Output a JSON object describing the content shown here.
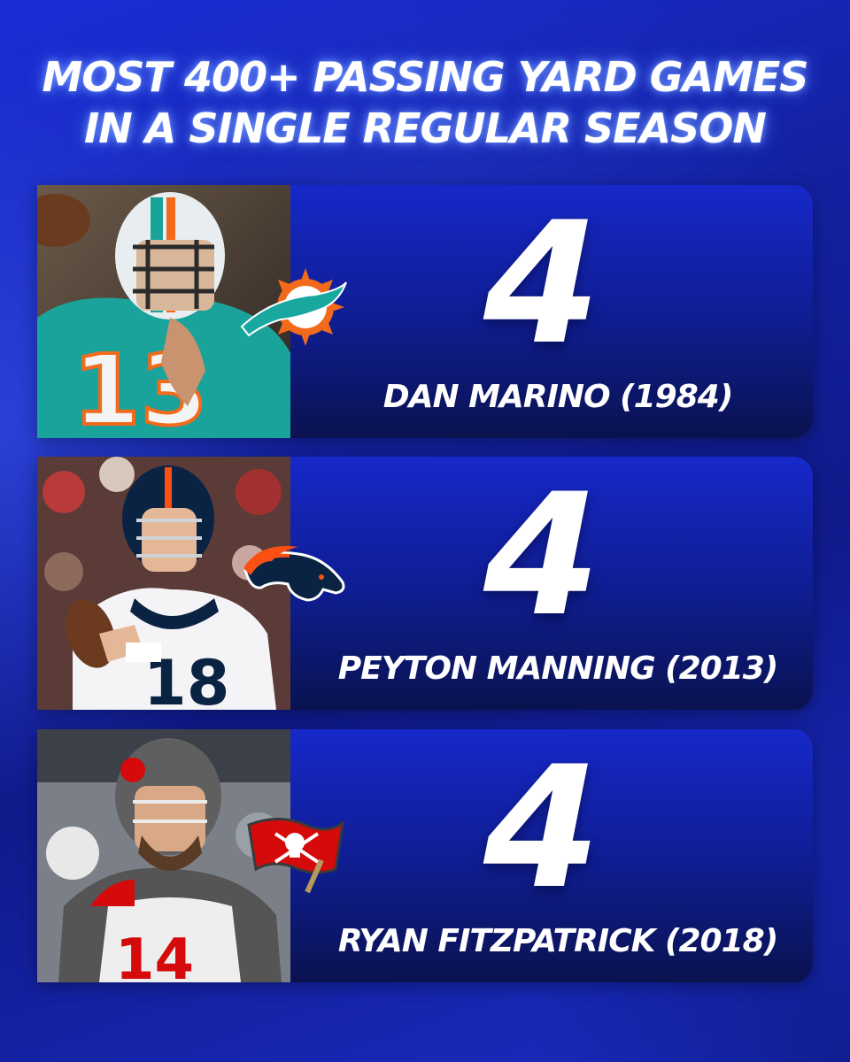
{
  "title": {
    "line1": "MOST 400+ PASSING YARD GAMES",
    "line2": "IN A SINGLE REGULAR SEASON"
  },
  "entries": [
    {
      "value": "4",
      "label": "DAN MARINO (1984)",
      "team_icon": "dolphins-logo-icon",
      "jersey_number": "13",
      "colors": {
        "jersey": "#1aa39a",
        "accent": "#f26a1b",
        "helmet": "#e8eef0"
      }
    },
    {
      "value": "4",
      "label": "PEYTON MANNING (2013)",
      "team_icon": "broncos-logo-icon",
      "jersey_number": "18",
      "colors": {
        "jersey": "#f4f4f6",
        "accent": "#fb4f14",
        "helmet": "#0a2343"
      }
    },
    {
      "value": "4",
      "label": "RYAN FITZPATRICK (2018)",
      "team_icon": "buccaneers-logo-icon",
      "jersey_number": "14",
      "colors": {
        "jersey": "#eeeeee",
        "accent": "#d50a0a",
        "helmet": "#5f5f5f"
      }
    }
  ]
}
